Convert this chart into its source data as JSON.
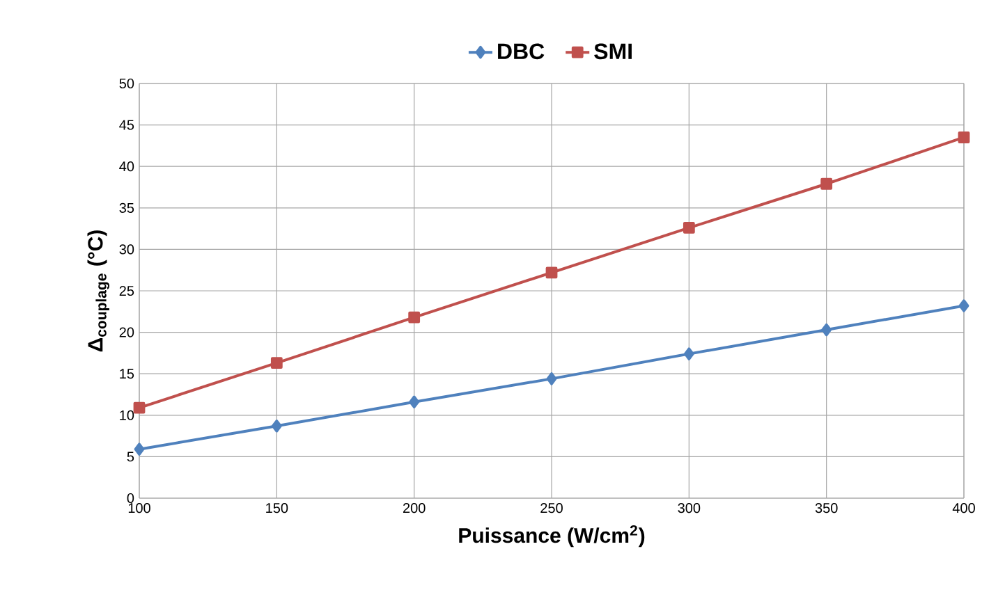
{
  "chart_data": {
    "type": "line",
    "xlabel": "Puissance (W/cm$^{2}$)",
    "ylabel": "Δ$_{couplage}$ (°C)",
    "x": [
      100,
      150,
      200,
      250,
      300,
      350,
      400
    ],
    "series": [
      {
        "name": "DBC",
        "color": "#4f81bd",
        "marker": "diamond",
        "values": [
          5.9,
          8.7,
          11.6,
          14.4,
          17.4,
          20.3,
          23.2
        ]
      },
      {
        "name": "SMI",
        "color": "#c0504d",
        "marker": "square",
        "values": [
          10.9,
          16.3,
          21.8,
          27.2,
          32.6,
          37.9,
          43.5
        ]
      }
    ],
    "xlim": [
      100,
      400
    ],
    "xticks": [
      100,
      150,
      200,
      250,
      300,
      350,
      400
    ],
    "ylim": [
      0,
      50
    ],
    "yticks": [
      0,
      5,
      10,
      15,
      20,
      25,
      30,
      35,
      40,
      45,
      50
    ],
    "grid": true,
    "legend": "top"
  }
}
